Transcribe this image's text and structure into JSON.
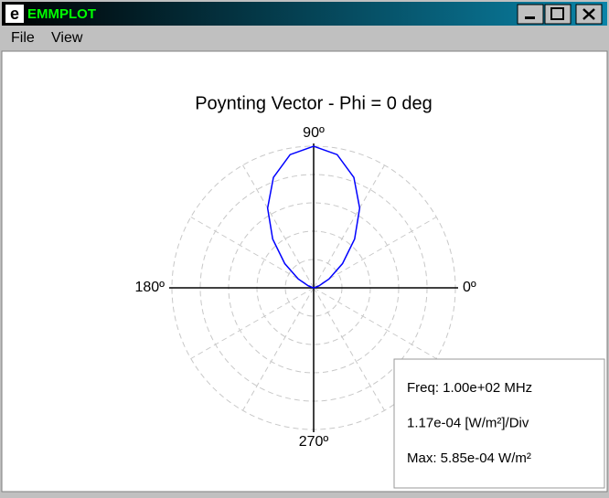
{
  "window": {
    "title": "EMMPLOT",
    "menu": [
      "File",
      "View"
    ]
  },
  "chart_data": {
    "type": "polar",
    "title": "Poynting Vector - Phi = 0 deg",
    "theta": [
      0,
      10,
      20,
      30,
      40,
      50,
      60,
      70,
      80,
      90,
      100,
      110,
      120,
      130,
      140,
      150,
      160,
      170,
      180
    ],
    "series": [
      {
        "color": "#0000ff",
        "values": [
          0,
          3.06e-06,
          2.34e-05,
          7.31e-05,
          0.0001554,
          0.000263,
          0.00038,
          0.0004854,
          0.0005587,
          0.000585,
          0.0005587,
          0.0004854,
          0.00038,
          0.000263,
          0.0001554,
          7.31e-05,
          2.34e-05,
          3.06e-06,
          0
        ]
      }
    ],
    "rlim": [
      0,
      0.000585
    ],
    "rticks": [
      0.000117,
      0.000234,
      0.000351,
      0.000468,
      0.000585
    ],
    "angle_ticks": [
      {
        "value": 0,
        "label": "0º"
      },
      {
        "value": 90,
        "label": "90º"
      },
      {
        "value": 180,
        "label": "180º"
      },
      {
        "value": 270,
        "label": "270º"
      }
    ],
    "grid_angles": [
      30,
      60,
      120,
      150,
      210,
      240,
      300,
      330
    ],
    "grid": true,
    "annotations": [
      "Freq: 1.00e+02 MHz",
      "1.17e-04 [W/m²]/Div",
      "Max: 5.85e-04 W/m²"
    ]
  }
}
